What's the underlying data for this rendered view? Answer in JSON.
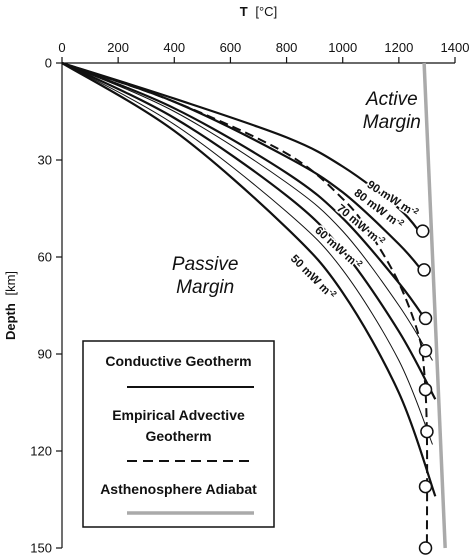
{
  "chart_data": {
    "type": "line",
    "title": "",
    "xlabel": {
      "symbol": "T",
      "unit": "[°C]"
    },
    "ylabel": {
      "symbol": "Depth",
      "unit": "[km]"
    },
    "xlim": [
      0,
      1400
    ],
    "ylim": [
      0,
      150
    ],
    "y_inverted": true,
    "x_axis_position": "top",
    "x_ticks": [
      0,
      200,
      400,
      600,
      800,
      1000,
      1200,
      1400
    ],
    "y_ticks": [
      0,
      30,
      60,
      90,
      120,
      150
    ],
    "grid": false,
    "region_labels": [
      {
        "lines": [
          "Active",
          "Margin"
        ],
        "x": 1175,
        "y": 13
      },
      {
        "lines": [
          "Passive",
          "Margin"
        ],
        "x": 510,
        "y": 64
      }
    ],
    "conductive_geotherms": [
      {
        "label": "90 mW m",
        "superscript": "-2",
        "points": [
          [
            0,
            0
          ],
          [
            400,
            11
          ],
          [
            800,
            23
          ],
          [
            1000,
            32
          ],
          [
            1200,
            45
          ],
          [
            1280,
            53
          ]
        ]
      },
      {
        "label": "80 mW m",
        "superscript": "-2",
        "points": [
          [
            0,
            0
          ],
          [
            400,
            12
          ],
          [
            800,
            29
          ],
          [
            1000,
            40
          ],
          [
            1200,
            56
          ],
          [
            1290,
            65
          ]
        ]
      },
      {
        "label": "70 mW m",
        "superscript": "-2",
        "points": [
          [
            0,
            0
          ],
          [
            400,
            14
          ],
          [
            800,
            34
          ],
          [
            1000,
            48
          ],
          [
            1200,
            68
          ],
          [
            1300,
            80
          ]
        ]
      },
      {
        "label": "60 mW m",
        "superscript": "-2",
        "points": [
          [
            0,
            0
          ],
          [
            400,
            17
          ],
          [
            800,
            41
          ],
          [
            1000,
            58
          ],
          [
            1200,
            83
          ],
          [
            1330,
            104
          ]
        ]
      },
      {
        "label": "50 mW m",
        "superscript": "-2",
        "points": [
          [
            0,
            0
          ],
          [
            400,
            21
          ],
          [
            800,
            51
          ],
          [
            1000,
            71
          ],
          [
            1200,
            102
          ],
          [
            1330,
            134
          ]
        ]
      }
    ],
    "thin_conductive_geotherms": [
      {
        "points": [
          [
            0,
            0
          ],
          [
            400,
            15
          ],
          [
            800,
            37
          ],
          [
            1000,
            52
          ],
          [
            1200,
            75
          ],
          [
            1320,
            92
          ]
        ]
      },
      {
        "points": [
          [
            0,
            0
          ],
          [
            400,
            19
          ],
          [
            800,
            46
          ],
          [
            1000,
            64
          ],
          [
            1200,
            92
          ],
          [
            1320,
            118
          ]
        ]
      }
    ],
    "empirical_advective_geotherm": {
      "points": [
        [
          0,
          0
        ],
        [
          400,
          12
        ],
        [
          800,
          28
        ],
        [
          1000,
          42
        ],
        [
          1100,
          53
        ],
        [
          1200,
          68
        ],
        [
          1270,
          84
        ],
        [
          1290,
          95
        ],
        [
          1300,
          115
        ],
        [
          1300,
          150
        ]
      ]
    },
    "asthenosphere_adiabat": {
      "points": [
        [
          1290,
          0
        ],
        [
          1365,
          150
        ]
      ]
    },
    "markers": [
      {
        "T": 1285,
        "depth": 52
      },
      {
        "T": 1290,
        "depth": 64
      },
      {
        "T": 1295,
        "depth": 79
      },
      {
        "T": 1295,
        "depth": 89
      },
      {
        "T": 1295,
        "depth": 101
      },
      {
        "T": 1300,
        "depth": 114
      },
      {
        "T": 1295,
        "depth": 131
      },
      {
        "T": 1295,
        "depth": 150
      }
    ],
    "legend": {
      "position": "lower-left",
      "entries": [
        {
          "lines": [
            "Conductive Geotherm"
          ],
          "style": "solid",
          "color": "#111111"
        },
        {
          "lines": [
            "Empirical Advective",
            "Geotherm"
          ],
          "style": "dashed",
          "color": "#111111"
        },
        {
          "lines": [
            "Asthenosphere Adiabat"
          ],
          "style": "solid",
          "color": "#aaaaaa"
        }
      ]
    },
    "colors": {
      "curve": "#111111",
      "adiabat": "#aaaaaa",
      "marker_fill": "#ffffff"
    }
  }
}
